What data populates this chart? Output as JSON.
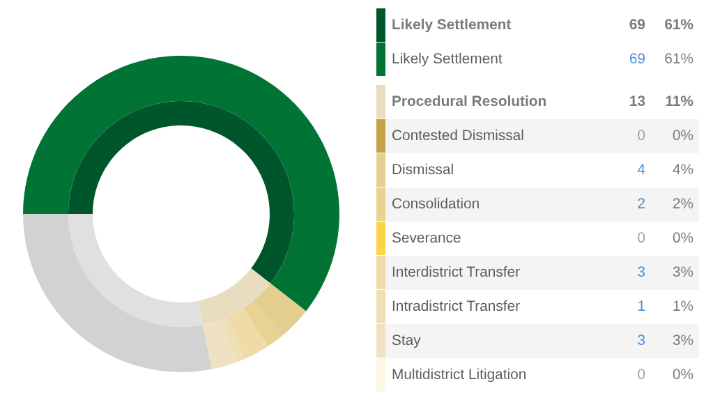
{
  "chart_data": {
    "type": "donut",
    "categories": [
      "Likely Settlement",
      "Likely Settlement",
      "Procedural Resolution",
      "Contested Dismissal",
      "Dismissal",
      "Consolidation",
      "Severance",
      "Interdistrict Transfer",
      "Intradistrict Transfer",
      "Stay",
      "Multidistrict Litigation",
      null
    ],
    "series": [
      {
        "values": [
          69,
          null,
          13,
          null,
          null,
          null,
          null,
          null,
          null,
          null,
          null,
          32
        ],
        "colors": [
          "#00562b",
          null,
          "#e8ddbf",
          null,
          null,
          null,
          null,
          null,
          null,
          null,
          null,
          "#e0e0e0"
        ],
        "value_labels": [
          "69",
          null,
          "13",
          null,
          null,
          null,
          null,
          null,
          null,
          null,
          null,
          null
        ]
      },
      {
        "values": [
          null,
          69,
          null,
          0,
          4,
          2,
          0,
          3,
          1,
          3,
          0,
          32
        ],
        "colors": [
          null,
          "#017335",
          null,
          "#c4a245",
          "#e3cf90",
          "#e9d392",
          "#fdd348",
          "#eedba7",
          "#efdfb5",
          "#efe1c2",
          "#fdf6e4",
          "#d2d2d2"
        ],
        "value_labels": [
          null,
          "69",
          null,
          "0",
          "4",
          "2",
          "0",
          "3",
          "1",
          "3",
          "0",
          null
        ]
      }
    ],
    "annotations": [
      "61%",
      "61%",
      "11%",
      "0%",
      "4%",
      "2%",
      "0%",
      "3%",
      "1%",
      "3%",
      "0%"
    ],
    "legend": "right"
  }
}
